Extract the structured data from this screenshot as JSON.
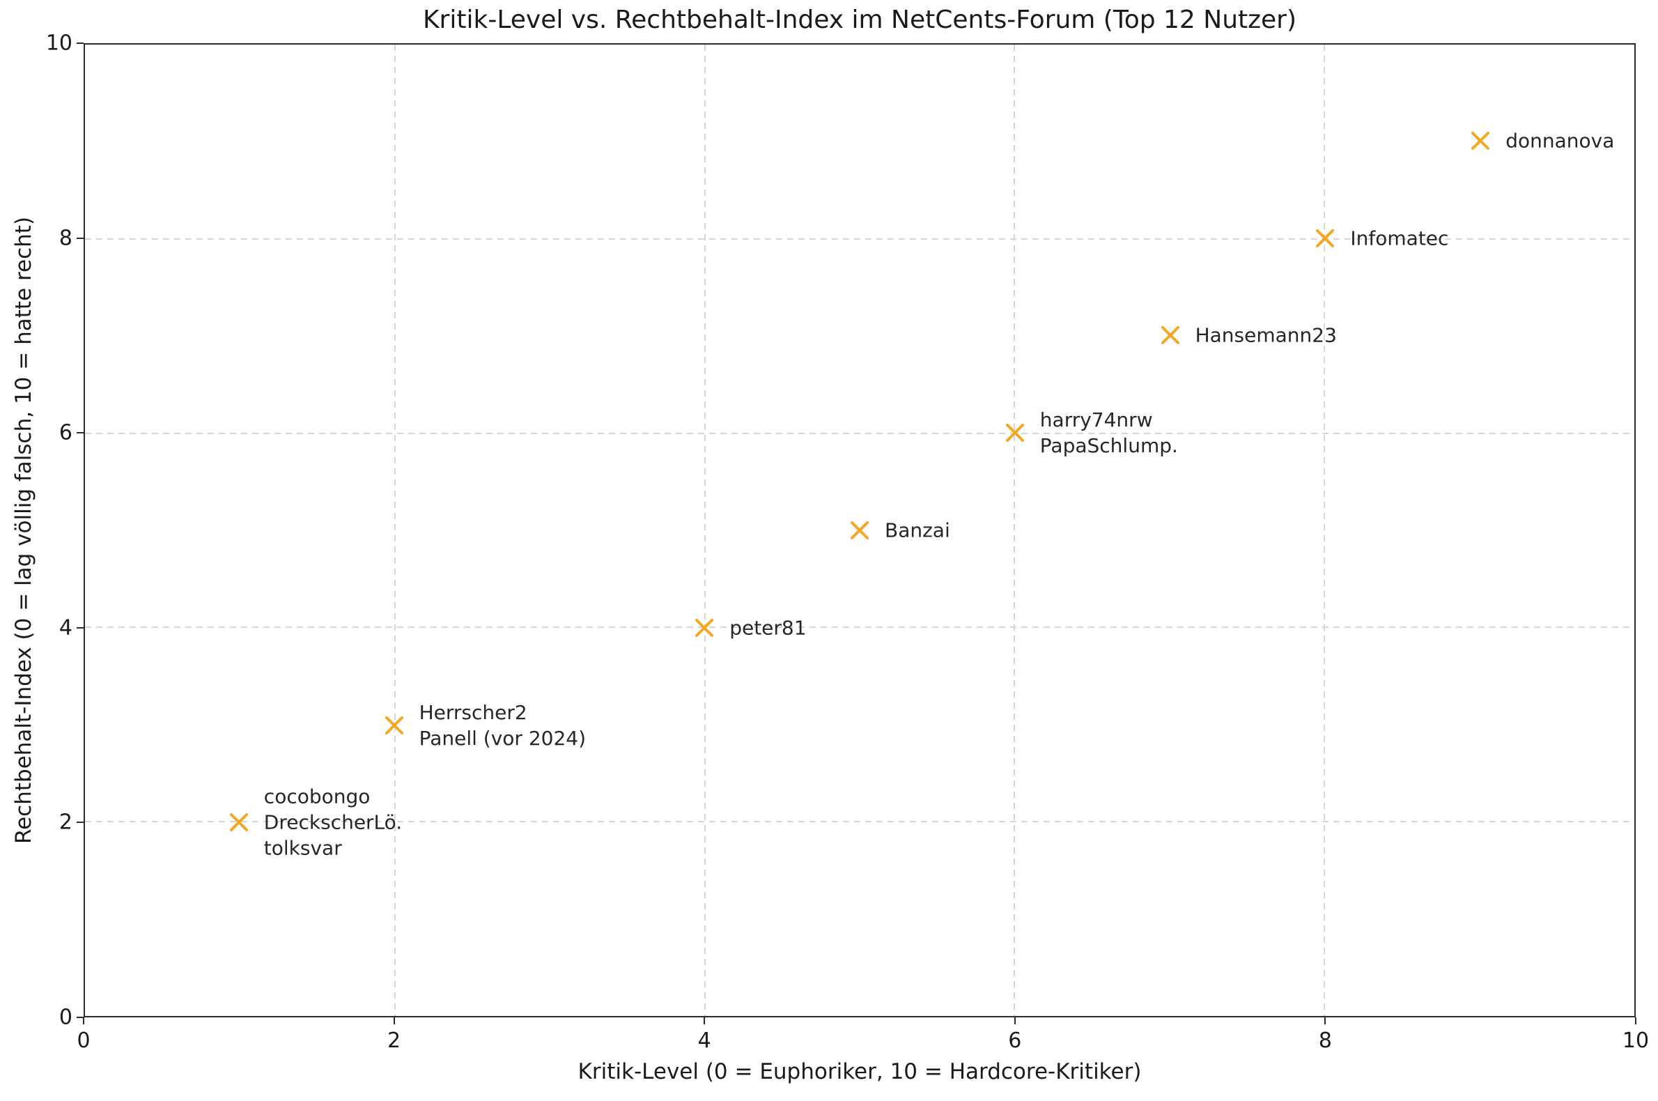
{
  "chart_data": {
    "type": "scatter",
    "title": "Kritik-Level vs. Rechtbehalt-Index im NetCents-Forum (Top 12 Nutzer)",
    "xlabel": "Kritik-Level (0 = Euphoriker, 10 = Hardcore-Kritiker)",
    "ylabel": "Rechtbehalt-Index (0 = lag völlig falsch, 10 = hatte recht)",
    "xlim": [
      0,
      10
    ],
    "ylim": [
      0,
      10
    ],
    "x_ticks": [
      0,
      2,
      4,
      6,
      8,
      10
    ],
    "y_ticks": [
      0,
      2,
      4,
      6,
      8,
      10
    ],
    "grid": "dashed",
    "legend": "none",
    "marker": "x",
    "marker_color": "#F5A623",
    "text_color": "#262626",
    "points": [
      {
        "x": 1,
        "y": 2,
        "labels": [
          "cocobongo",
          "DreckscherLö.",
          "tolksvar"
        ]
      },
      {
        "x": 2,
        "y": 3,
        "labels": [
          "Herrscher2",
          "Panell (vor 2024)"
        ]
      },
      {
        "x": 4,
        "y": 4,
        "labels": [
          "peter81"
        ]
      },
      {
        "x": 5,
        "y": 5,
        "labels": [
          "Banzai"
        ]
      },
      {
        "x": 6,
        "y": 6,
        "labels": [
          "harry74nrw",
          "PapaSchlump."
        ]
      },
      {
        "x": 7,
        "y": 7,
        "labels": [
          "Hansemann23"
        ]
      },
      {
        "x": 8,
        "y": 8,
        "labels": [
          "Infomatec"
        ]
      },
      {
        "x": 9,
        "y": 9,
        "labels": [
          "donnanova"
        ]
      }
    ]
  }
}
